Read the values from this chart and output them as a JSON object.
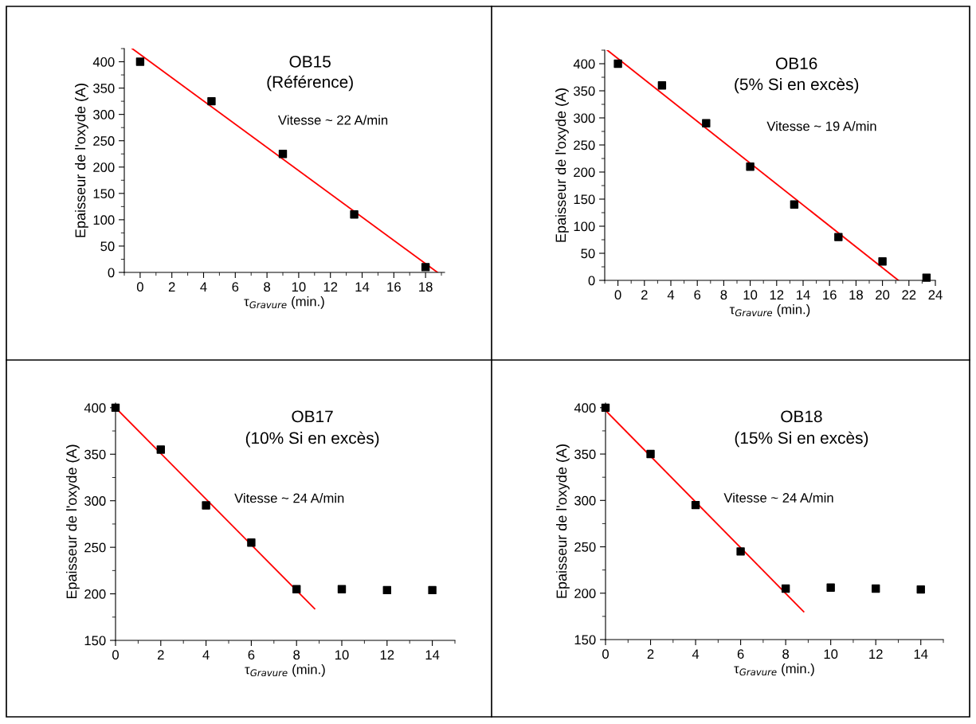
{
  "chart_data": [
    {
      "type": "scatter",
      "title": "OB15",
      "subtitle": "(Référence)",
      "xlabel": "τ$_{Gravure}$ (min.)",
      "ylabel": "Epaisseur de l'oxyde (A)",
      "annotations": [
        "Vitesse ~ 22 A/min"
      ],
      "xlim": [
        -1,
        19.2
      ],
      "ylim": [
        0,
        425
      ],
      "xticks": [
        0,
        2,
        4,
        6,
        8,
        10,
        12,
        14,
        16,
        18
      ],
      "yticks": [
        0,
        50,
        100,
        150,
        200,
        250,
        300,
        350,
        400
      ],
      "series": [
        {
          "marker": "square",
          "color": "#000000",
          "x": [
            0,
            4.5,
            9,
            13.5,
            18
          ],
          "values": [
            400,
            325,
            225,
            110,
            10
          ]
        },
        {
          "type": "line",
          "marker": "none",
          "color": "#ff0000",
          "x": [
            -0.5,
            18.75
          ],
          "values": [
            425,
            0
          ]
        }
      ]
    },
    {
      "type": "scatter",
      "title": "OB16",
      "subtitle": "(5% Si en excès)",
      "xlabel": "τ$_{Gravure}$ (min.)",
      "ylabel": "Epaisseur de l'oxyde (A)",
      "annotations": [
        "Vitesse ~ 19 A/min"
      ],
      "xlim": [
        -1,
        24
      ],
      "ylim": [
        0,
        425
      ],
      "xticks": [
        0,
        2,
        4,
        6,
        8,
        10,
        12,
        14,
        16,
        18,
        20,
        22,
        24
      ],
      "yticks": [
        0,
        50,
        100,
        150,
        200,
        250,
        300,
        350,
        400
      ],
      "series": [
        {
          "marker": "square",
          "color": "#000000",
          "x": [
            0,
            3.33,
            6.67,
            10,
            13.33,
            16.67,
            20,
            23.33
          ],
          "values": [
            400,
            360,
            290,
            210,
            140,
            80,
            35,
            5
          ]
        },
        {
          "type": "line",
          "marker": "none",
          "color": "#ff0000",
          "x": [
            -0.8,
            21.2
          ],
          "values": [
            425,
            0
          ]
        }
      ]
    },
    {
      "type": "scatter",
      "title": "OB17",
      "subtitle": "(10% Si en excès)",
      "xlabel": "τ$_{Gravure}$ (min.)",
      "ylabel": "Epaisseur de l'oxyde (A)",
      "annotations": [
        "Vitesse ~ 24 A/min"
      ],
      "xlim": [
        0,
        15
      ],
      "ylim": [
        150,
        405
      ],
      "xticks": [
        0,
        2,
        4,
        6,
        8,
        10,
        12,
        14
      ],
      "yticks": [
        150,
        200,
        250,
        300,
        350,
        400
      ],
      "series": [
        {
          "marker": "square",
          "color": "#000000",
          "x": [
            0,
            2,
            4,
            6,
            8,
            10,
            12,
            14
          ],
          "values": [
            400,
            355,
            295,
            255,
            205,
            205,
            204,
            204
          ]
        },
        {
          "type": "line",
          "marker": "none",
          "color": "#ff0000",
          "x": [
            0,
            8.8
          ],
          "values": [
            400,
            184
          ]
        }
      ]
    },
    {
      "type": "scatter",
      "title": "OB18",
      "subtitle": "(15% Si en excès)",
      "xlabel": "τ$_{Gravure}$ (min.)",
      "ylabel": "Epaisseur de l'oxyde (A)",
      "annotations": [
        "Vitesse ~ 24 A/min"
      ],
      "xlim": [
        0,
        15
      ],
      "ylim": [
        150,
        405
      ],
      "xticks": [
        0,
        2,
        4,
        6,
        8,
        10,
        12,
        14
      ],
      "yticks": [
        150,
        200,
        250,
        300,
        350,
        400
      ],
      "series": [
        {
          "marker": "square",
          "color": "#000000",
          "x": [
            0,
            2,
            4,
            6,
            8,
            10,
            12,
            14
          ],
          "values": [
            400,
            350,
            295,
            245,
            205,
            206,
            205,
            204
          ]
        },
        {
          "type": "line",
          "marker": "none",
          "color": "#ff0000",
          "x": [
            0,
            8.8
          ],
          "values": [
            397,
            180
          ]
        }
      ]
    }
  ]
}
